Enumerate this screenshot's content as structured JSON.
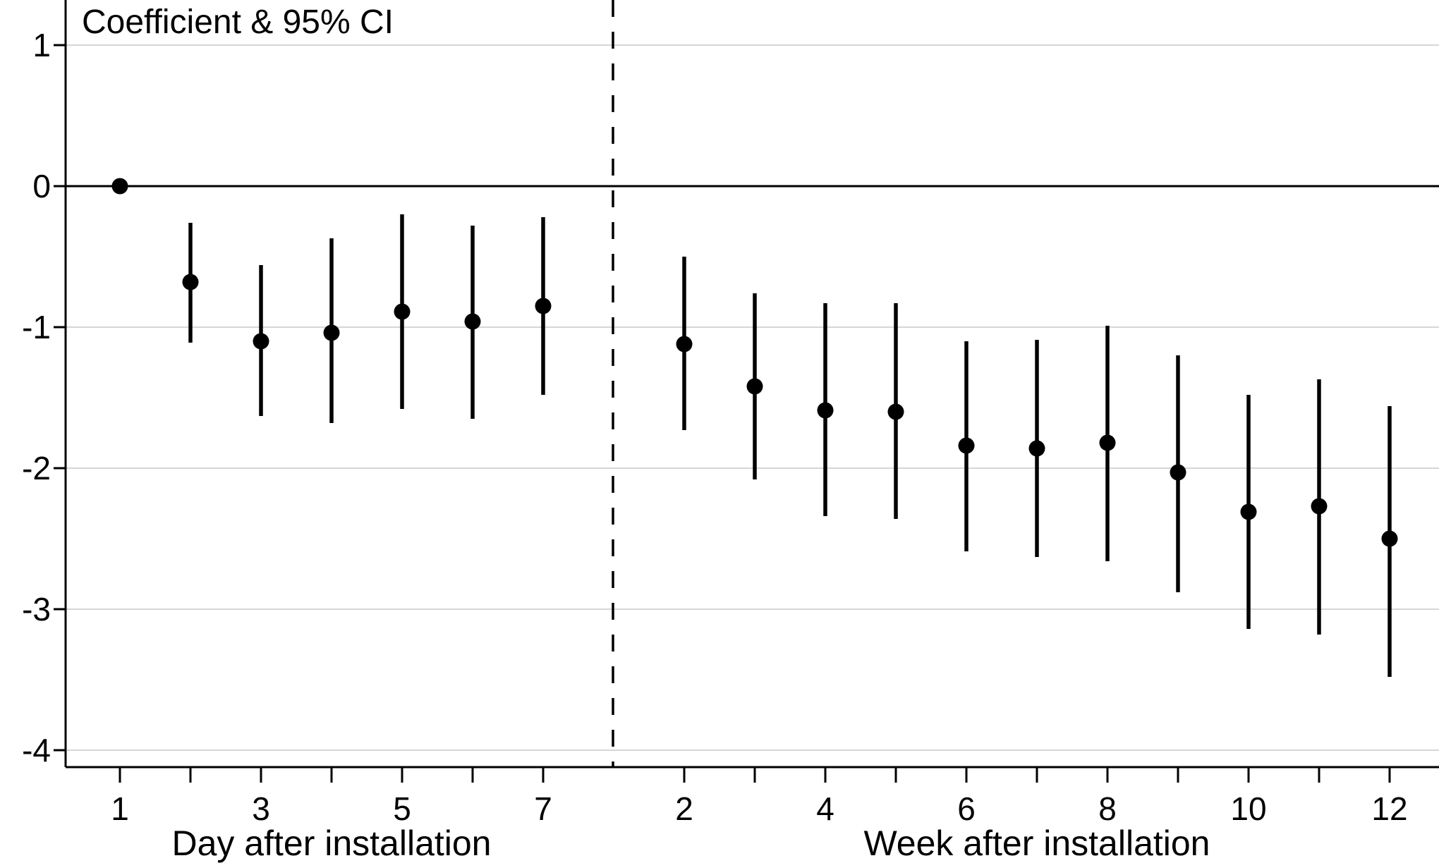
{
  "chart_data": {
    "type": "scatter",
    "subtype": "coefficient-errorbar-plot",
    "title": "Coefficient & 95% CI",
    "background_color": "#ffffff",
    "point_color": "#000000",
    "ci_color": "#000000",
    "axis_color": "#000000",
    "gridline_color": "#d6d6d6",
    "grid": true,
    "legend": "none",
    "y_axis": {
      "ticks": [
        {
          "value": 1,
          "label": "1"
        },
        {
          "value": 0,
          "label": "0"
        },
        {
          "value": -1,
          "label": "-1"
        },
        {
          "value": -2,
          "label": "-2"
        },
        {
          "value": -3,
          "label": "-3"
        },
        {
          "value": -4,
          "label": "-4"
        }
      ],
      "range": [
        -4.12,
        1.32
      ],
      "zero_reference_line": true
    },
    "divider": {
      "style": "dashed",
      "color": "#000000",
      "between": "day 7 and week 2"
    },
    "groups": [
      {
        "name": "day",
        "axis_label": "Day after installation",
        "x_ticks": [
          {
            "x": 1,
            "label": "1"
          },
          {
            "x": 2,
            "label": ""
          },
          {
            "x": 3,
            "label": "3"
          },
          {
            "x": 4,
            "label": ""
          },
          {
            "x": 5,
            "label": "5"
          },
          {
            "x": 6,
            "label": ""
          },
          {
            "x": 7,
            "label": "7"
          }
        ],
        "points": [
          {
            "x": 1,
            "y": 0.0,
            "lo": null,
            "hi": null
          },
          {
            "x": 2,
            "y": -0.68,
            "lo": -1.11,
            "hi": -0.26
          },
          {
            "x": 3,
            "y": -1.1,
            "lo": -1.63,
            "hi": -0.56
          },
          {
            "x": 4,
            "y": -1.04,
            "lo": -1.68,
            "hi": -0.37
          },
          {
            "x": 5,
            "y": -0.89,
            "lo": -1.58,
            "hi": -0.2
          },
          {
            "x": 6,
            "y": -0.96,
            "lo": -1.65,
            "hi": -0.28
          },
          {
            "x": 7,
            "y": -0.85,
            "lo": -1.48,
            "hi": -0.22
          }
        ]
      },
      {
        "name": "week",
        "axis_label": "Week after installation",
        "x_ticks": [
          {
            "x": 2,
            "label": "2"
          },
          {
            "x": 3,
            "label": ""
          },
          {
            "x": 4,
            "label": "4"
          },
          {
            "x": 5,
            "label": ""
          },
          {
            "x": 6,
            "label": "6"
          },
          {
            "x": 7,
            "label": ""
          },
          {
            "x": 8,
            "label": "8"
          },
          {
            "x": 9,
            "label": ""
          },
          {
            "x": 10,
            "label": "10"
          },
          {
            "x": 11,
            "label": ""
          },
          {
            "x": 12,
            "label": "12"
          }
        ],
        "points": [
          {
            "x": 2,
            "y": -1.12,
            "lo": -1.73,
            "hi": -0.5
          },
          {
            "x": 3,
            "y": -1.42,
            "lo": -2.08,
            "hi": -0.76
          },
          {
            "x": 4,
            "y": -1.59,
            "lo": -2.34,
            "hi": -0.83
          },
          {
            "x": 5,
            "y": -1.6,
            "lo": -2.36,
            "hi": -0.83
          },
          {
            "x": 6,
            "y": -1.84,
            "lo": -2.59,
            "hi": -1.1
          },
          {
            "x": 7,
            "y": -1.86,
            "lo": -2.63,
            "hi": -1.09
          },
          {
            "x": 8,
            "y": -1.82,
            "lo": -2.66,
            "hi": -0.99
          },
          {
            "x": 9,
            "y": -2.03,
            "lo": -2.88,
            "hi": -1.2
          },
          {
            "x": 10,
            "y": -2.31,
            "lo": -3.14,
            "hi": -1.48
          },
          {
            "x": 11,
            "y": -2.27,
            "lo": -3.18,
            "hi": -1.37
          },
          {
            "x": 12,
            "y": -2.5,
            "lo": -3.48,
            "hi": -1.56
          }
        ]
      }
    ]
  }
}
